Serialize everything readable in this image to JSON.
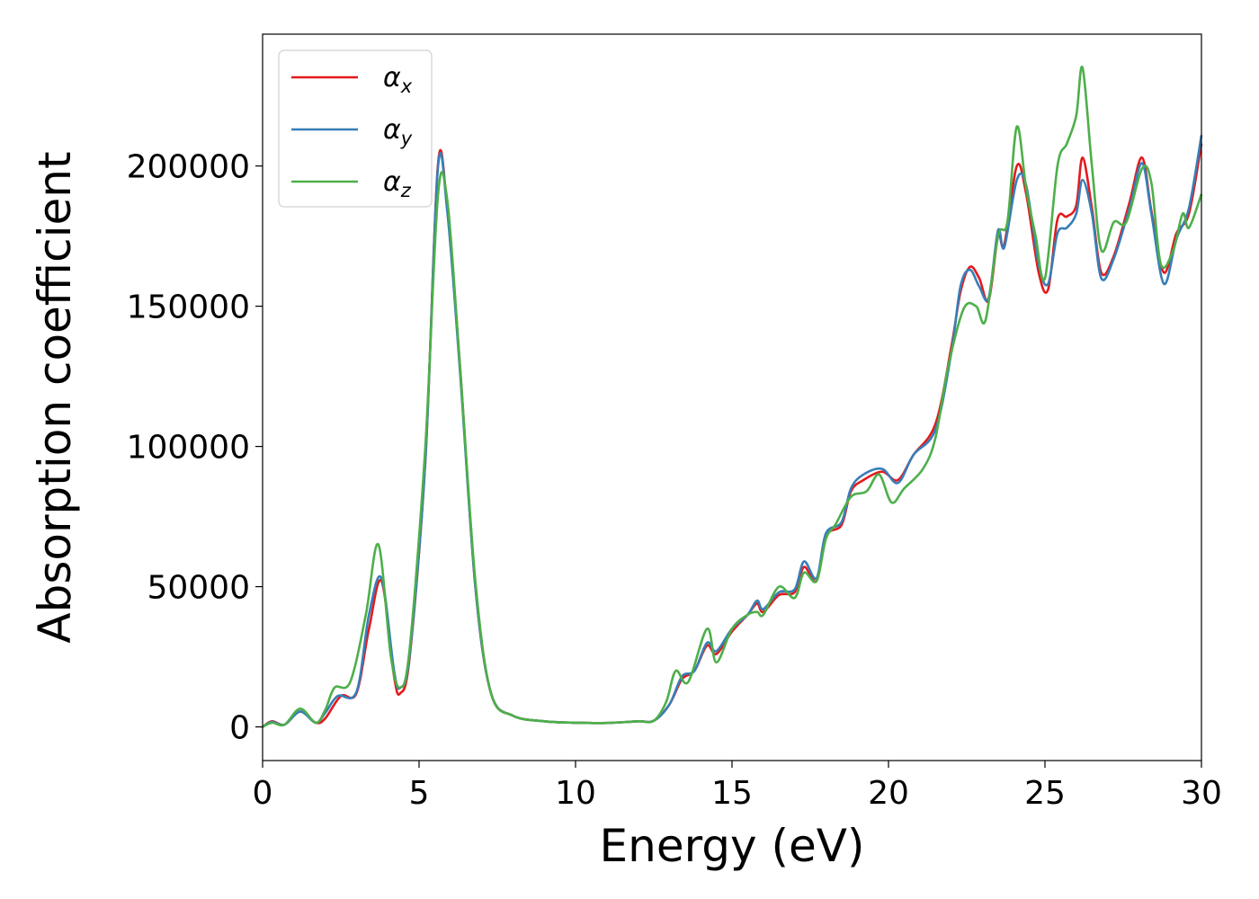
{
  "chart_data": {
    "type": "line",
    "xlabel": "Energy (eV)",
    "ylabel": "Absorption coefficient",
    "xlim": [
      0,
      30
    ],
    "ylim": [
      -12000,
      247000
    ],
    "xticks": [
      0,
      5,
      10,
      15,
      20,
      25,
      30
    ],
    "xtick_labels": [
      "0",
      "5",
      "10",
      "15",
      "20",
      "25",
      "30"
    ],
    "yticks": [
      0,
      50000,
      100000,
      150000,
      200000
    ],
    "ytick_labels": [
      "0",
      "50000",
      "100000",
      "150000",
      "200000"
    ],
    "grid": false,
    "legend_position": "top-left",
    "series": [
      {
        "name": "αx",
        "legend_base": "α",
        "legend_sub": "x",
        "color": "#e41a1c",
        "points": [
          [
            0,
            0
          ],
          [
            0.3,
            2000
          ],
          [
            0.7,
            800
          ],
          [
            1.2,
            5500
          ],
          [
            1.7,
            1500
          ],
          [
            2.0,
            3000
          ],
          [
            2.5,
            11000
          ],
          [
            3.0,
            12000
          ],
          [
            3.4,
            35000
          ],
          [
            3.8,
            52000
          ],
          [
            4.2,
            18000
          ],
          [
            4.4,
            12000
          ],
          [
            4.7,
            25000
          ],
          [
            5.2,
            95000
          ],
          [
            5.6,
            200000
          ],
          [
            5.9,
            185000
          ],
          [
            6.3,
            130000
          ],
          [
            6.8,
            50000
          ],
          [
            7.3,
            12000
          ],
          [
            8.0,
            4000
          ],
          [
            9.0,
            2000
          ],
          [
            10.0,
            1500
          ],
          [
            11.0,
            1400
          ],
          [
            12.0,
            2000
          ],
          [
            12.5,
            2200
          ],
          [
            13.0,
            8000
          ],
          [
            13.4,
            17000
          ],
          [
            13.8,
            20000
          ],
          [
            14.2,
            29000
          ],
          [
            14.5,
            26000
          ],
          [
            15.0,
            34000
          ],
          [
            15.5,
            40000
          ],
          [
            15.8,
            44000
          ],
          [
            16.0,
            41000
          ],
          [
            16.5,
            47000
          ],
          [
            17.0,
            48000
          ],
          [
            17.3,
            57000
          ],
          [
            17.7,
            52000
          ],
          [
            18.0,
            68000
          ],
          [
            18.5,
            72000
          ],
          [
            18.8,
            84000
          ],
          [
            19.2,
            88000
          ],
          [
            19.8,
            91000
          ],
          [
            20.3,
            88000
          ],
          [
            20.8,
            97000
          ],
          [
            21.5,
            108000
          ],
          [
            22.0,
            135000
          ],
          [
            22.3,
            155000
          ],
          [
            22.6,
            164000
          ],
          [
            22.9,
            160000
          ],
          [
            23.2,
            152000
          ],
          [
            23.5,
            175000
          ],
          [
            23.7,
            172000
          ],
          [
            24.1,
            200000
          ],
          [
            24.4,
            190000
          ],
          [
            24.8,
            162000
          ],
          [
            25.1,
            156000
          ],
          [
            25.4,
            181000
          ],
          [
            25.7,
            182000
          ],
          [
            26.0,
            186000
          ],
          [
            26.2,
            203000
          ],
          [
            26.5,
            185000
          ],
          [
            26.8,
            162000
          ],
          [
            27.2,
            168000
          ],
          [
            27.7,
            187000
          ],
          [
            28.1,
            203000
          ],
          [
            28.4,
            184000
          ],
          [
            28.8,
            162000
          ],
          [
            29.2,
            176000
          ],
          [
            29.6,
            183000
          ],
          [
            30.0,
            208000
          ]
        ]
      },
      {
        "name": "αy",
        "legend_base": "α",
        "legend_sub": "y",
        "color": "#377eb8",
        "points": [
          [
            0,
            0
          ],
          [
            0.3,
            1800
          ],
          [
            0.7,
            800
          ],
          [
            1.2,
            5500
          ],
          [
            1.7,
            1500
          ],
          [
            2.0,
            5000
          ],
          [
            2.4,
            11000
          ],
          [
            3.0,
            12500
          ],
          [
            3.4,
            40000
          ],
          [
            3.8,
            53000
          ],
          [
            4.2,
            20000
          ],
          [
            4.4,
            14000
          ],
          [
            4.7,
            26000
          ],
          [
            5.2,
            95000
          ],
          [
            5.6,
            199000
          ],
          [
            5.9,
            184000
          ],
          [
            6.3,
            128000
          ],
          [
            6.8,
            50000
          ],
          [
            7.3,
            12000
          ],
          [
            8.0,
            4000
          ],
          [
            9.0,
            2000
          ],
          [
            10.0,
            1500
          ],
          [
            11.0,
            1400
          ],
          [
            12.0,
            2000
          ],
          [
            12.5,
            2200
          ],
          [
            13.0,
            8000
          ],
          [
            13.4,
            18000
          ],
          [
            13.8,
            20000
          ],
          [
            14.2,
            30000
          ],
          [
            14.5,
            27000
          ],
          [
            15.0,
            35000
          ],
          [
            15.5,
            40000
          ],
          [
            15.8,
            45000
          ],
          [
            16.0,
            42000
          ],
          [
            16.5,
            48000
          ],
          [
            17.0,
            49000
          ],
          [
            17.3,
            59000
          ],
          [
            17.7,
            53000
          ],
          [
            18.0,
            69000
          ],
          [
            18.5,
            73000
          ],
          [
            18.8,
            85000
          ],
          [
            19.2,
            90000
          ],
          [
            19.8,
            92000
          ],
          [
            20.3,
            87000
          ],
          [
            20.8,
            97000
          ],
          [
            21.5,
            106000
          ],
          [
            22.0,
            133000
          ],
          [
            22.3,
            157000
          ],
          [
            22.6,
            163000
          ],
          [
            22.9,
            157000
          ],
          [
            23.2,
            153000
          ],
          [
            23.5,
            177000
          ],
          [
            23.7,
            171000
          ],
          [
            24.1,
            195000
          ],
          [
            24.4,
            193000
          ],
          [
            24.8,
            165000
          ],
          [
            25.1,
            158000
          ],
          [
            25.4,
            176000
          ],
          [
            25.7,
            178000
          ],
          [
            26.0,
            183000
          ],
          [
            26.2,
            195000
          ],
          [
            26.5,
            183000
          ],
          [
            26.8,
            160000
          ],
          [
            27.2,
            167000
          ],
          [
            27.7,
            185000
          ],
          [
            28.1,
            201000
          ],
          [
            28.4,
            183000
          ],
          [
            28.8,
            158000
          ],
          [
            29.2,
            174000
          ],
          [
            29.6,
            185000
          ],
          [
            30.0,
            211000
          ]
        ]
      },
      {
        "name": "αz",
        "legend_base": "α",
        "legend_sub": "z",
        "color": "#4daf4a",
        "points": [
          [
            0,
            0
          ],
          [
            0.3,
            1500
          ],
          [
            0.7,
            800
          ],
          [
            1.2,
            6500
          ],
          [
            1.7,
            1500
          ],
          [
            2.0,
            6000
          ],
          [
            2.3,
            14000
          ],
          [
            2.8,
            16000
          ],
          [
            3.3,
            40000
          ],
          [
            3.7,
            65000
          ],
          [
            4.1,
            25000
          ],
          [
            4.4,
            14000
          ],
          [
            4.7,
            28000
          ],
          [
            5.2,
            100000
          ],
          [
            5.6,
            189000
          ],
          [
            5.9,
            188000
          ],
          [
            6.3,
            130000
          ],
          [
            6.8,
            52000
          ],
          [
            7.3,
            12000
          ],
          [
            8.0,
            4000
          ],
          [
            9.0,
            2000
          ],
          [
            10.0,
            1500
          ],
          [
            11.0,
            1400
          ],
          [
            12.0,
            2000
          ],
          [
            12.5,
            2200
          ],
          [
            12.9,
            9000
          ],
          [
            13.2,
            20000
          ],
          [
            13.6,
            16000
          ],
          [
            14.2,
            35000
          ],
          [
            14.5,
            23000
          ],
          [
            15.0,
            35000
          ],
          [
            15.5,
            40000
          ],
          [
            15.8,
            41000
          ],
          [
            16.0,
            40000
          ],
          [
            16.5,
            50000
          ],
          [
            17.0,
            46000
          ],
          [
            17.3,
            55000
          ],
          [
            17.7,
            52000
          ],
          [
            18.0,
            67000
          ],
          [
            18.3,
            72000
          ],
          [
            18.8,
            82000
          ],
          [
            19.3,
            84000
          ],
          [
            19.7,
            90000
          ],
          [
            20.1,
            80000
          ],
          [
            20.5,
            85000
          ],
          [
            21.1,
            92000
          ],
          [
            21.5,
            103000
          ],
          [
            21.9,
            128000
          ],
          [
            22.4,
            149000
          ],
          [
            22.8,
            150000
          ],
          [
            23.1,
            145000
          ],
          [
            23.5,
            175000
          ],
          [
            23.8,
            180000
          ],
          [
            24.1,
            214000
          ],
          [
            24.4,
            192000
          ],
          [
            24.7,
            175000
          ],
          [
            25.0,
            160000
          ],
          [
            25.4,
            200000
          ],
          [
            25.7,
            208000
          ],
          [
            26.0,
            218000
          ],
          [
            26.2,
            235000
          ],
          [
            26.5,
            200000
          ],
          [
            26.8,
            170000
          ],
          [
            27.2,
            180000
          ],
          [
            27.6,
            180000
          ],
          [
            28.1,
            199000
          ],
          [
            28.4,
            194000
          ],
          [
            28.7,
            165000
          ],
          [
            29.1,
            170000
          ],
          [
            29.4,
            183000
          ],
          [
            29.6,
            178000
          ],
          [
            30.0,
            190000
          ]
        ]
      }
    ]
  }
}
